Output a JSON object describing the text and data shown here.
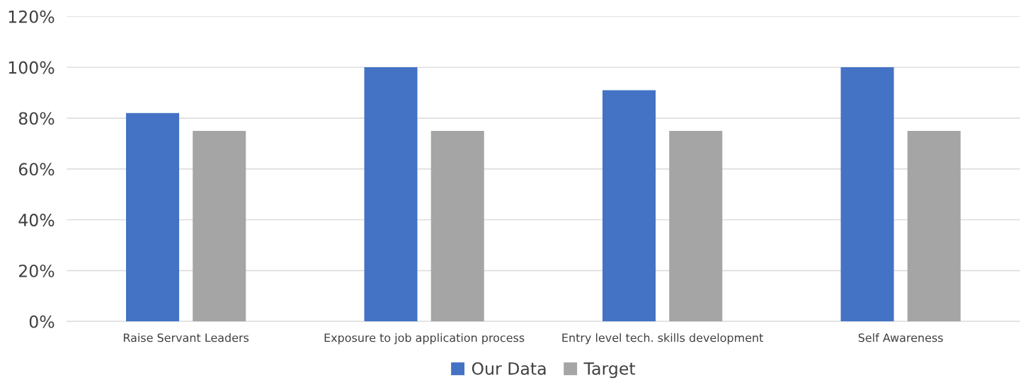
{
  "chart_data": {
    "type": "bar",
    "categories": [
      "Raise Servant Leaders",
      "Exposure to job application process",
      "Entry level tech. skills development",
      "Self Awareness"
    ],
    "series": [
      {
        "name": "Our Data",
        "color": "#4472c4",
        "values": [
          82,
          100,
          91,
          100
        ]
      },
      {
        "name": "Target",
        "color": "#a5a5a5",
        "values": [
          75,
          75,
          75,
          75
        ]
      }
    ],
    "ylim": [
      0,
      120
    ],
    "yticks": [
      {
        "value": 0,
        "label": "0%"
      },
      {
        "value": 20,
        "label": "20%"
      },
      {
        "value": 40,
        "label": "40%"
      },
      {
        "value": 60,
        "label": "60%"
      },
      {
        "value": 80,
        "label": "80%"
      },
      {
        "value": 100,
        "label": "100%"
      },
      {
        "value": 120,
        "label": "120%"
      }
    ],
    "grid": "y",
    "legend": "bottom"
  }
}
